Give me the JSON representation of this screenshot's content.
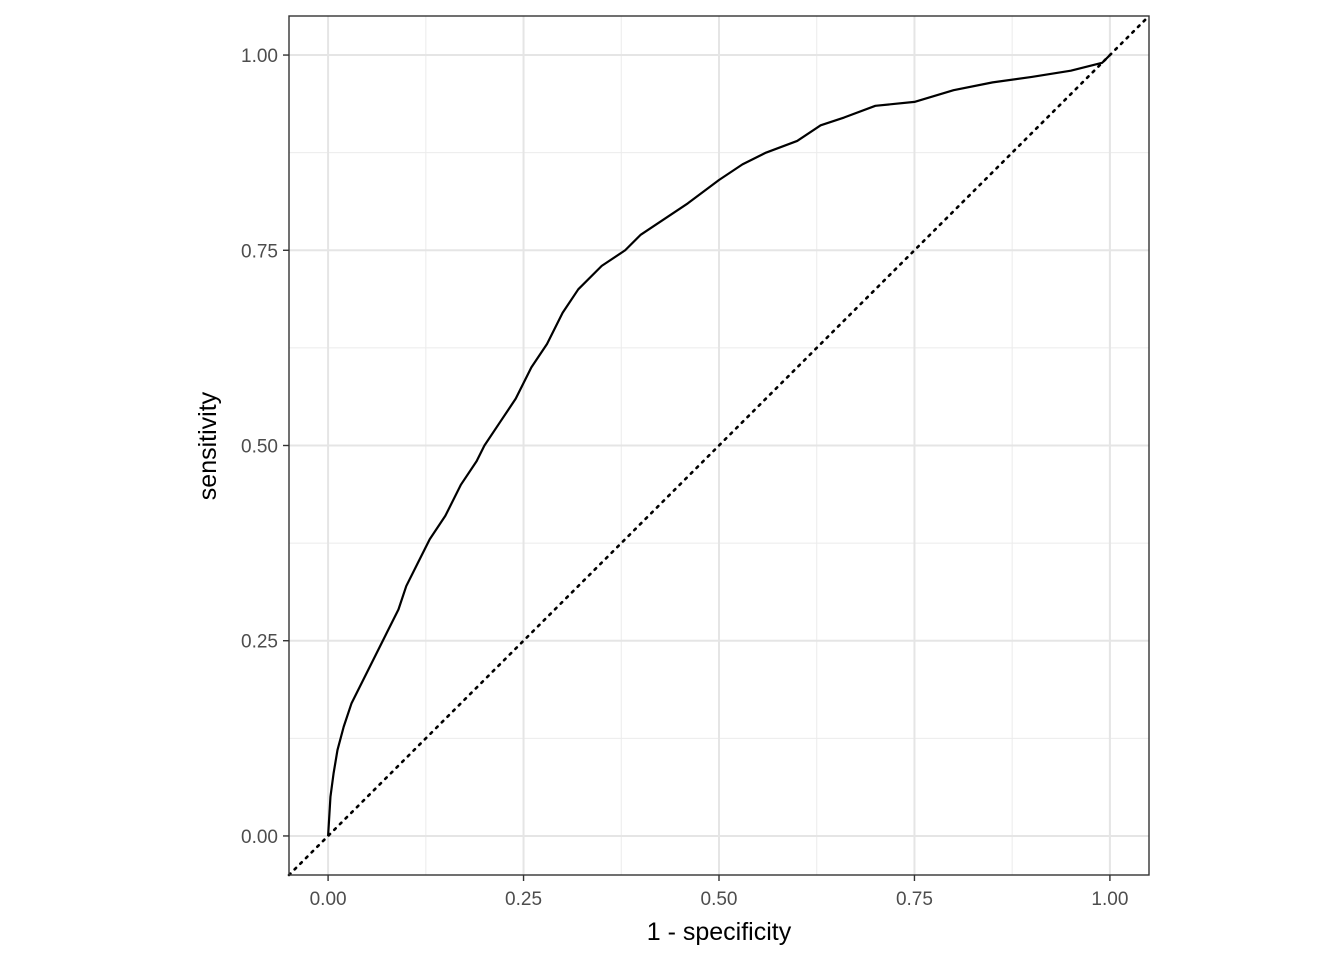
{
  "chart_data": {
    "type": "line",
    "title": "",
    "xlabel": "1 - specificity",
    "ylabel": "sensitivity",
    "xlim": [
      -0.05,
      1.05
    ],
    "ylim": [
      -0.05,
      1.05
    ],
    "x_ticks": [
      0,
      0.25,
      0.5,
      0.75,
      1
    ],
    "x_tick_labels": [
      "0.00",
      "0.25",
      "0.50",
      "0.75",
      "1.00"
    ],
    "y_ticks": [
      0,
      0.25,
      0.5,
      0.75,
      1
    ],
    "y_tick_labels": [
      "0.00",
      "0.25",
      "0.50",
      "0.75",
      "1.00"
    ],
    "grid": true,
    "theme": "bw",
    "series": [
      {
        "style": "solid",
        "color": "#000000",
        "x": [
          0,
          0.003,
          0.007,
          0.012,
          0.02,
          0.03,
          0.04,
          0.05,
          0.06,
          0.075,
          0.09,
          0.1,
          0.115,
          0.13,
          0.15,
          0.17,
          0.19,
          0.2,
          0.22,
          0.24,
          0.25,
          0.26,
          0.28,
          0.3,
          0.32,
          0.35,
          0.38,
          0.4,
          0.43,
          0.46,
          0.5,
          0.53,
          0.56,
          0.6,
          0.63,
          0.66,
          0.7,
          0.75,
          0.8,
          0.85,
          0.9,
          0.95,
          0.99,
          1
        ],
        "y": [
          0,
          0.05,
          0.08,
          0.11,
          0.14,
          0.17,
          0.19,
          0.21,
          0.23,
          0.26,
          0.29,
          0.32,
          0.35,
          0.38,
          0.41,
          0.45,
          0.48,
          0.5,
          0.53,
          0.56,
          0.58,
          0.6,
          0.63,
          0.67,
          0.7,
          0.73,
          0.75,
          0.77,
          0.79,
          0.81,
          0.84,
          0.86,
          0.875,
          0.89,
          0.91,
          0.92,
          0.935,
          0.94,
          0.955,
          0.965,
          0.972,
          0.98,
          0.99,
          1
        ]
      },
      {
        "style": "dotted",
        "color": "#000000",
        "x": [
          -0.05,
          1.05
        ],
        "y": [
          -0.05,
          1.05
        ]
      }
    ]
  }
}
